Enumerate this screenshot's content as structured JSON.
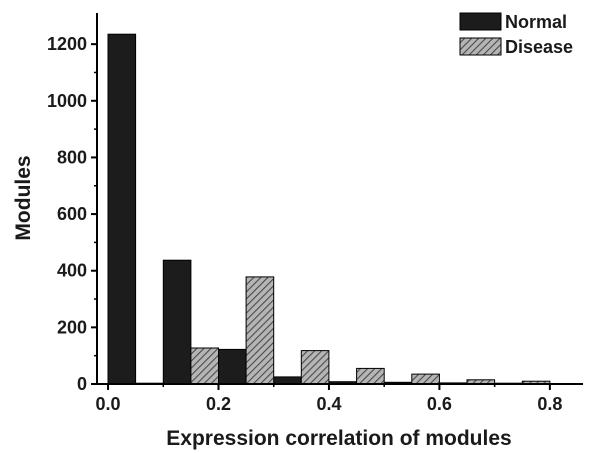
{
  "chart_data": {
    "type": "bar",
    "xlabel": "Expression correlation of modules",
    "ylabel": "Modules",
    "x_bins": [
      0.0,
      0.1,
      0.2,
      0.3,
      0.4,
      0.5,
      0.6,
      0.7
    ],
    "bin_width": 0.1,
    "xlim": [
      -0.02,
      0.86
    ],
    "ylim": [
      0,
      1310
    ],
    "x_ticks": [
      0.0,
      0.2,
      0.4,
      0.6,
      0.8
    ],
    "x_tick_labels": [
      "0.0",
      "0.2",
      "0.4",
      "0.6",
      "0.8"
    ],
    "y_ticks": [
      0,
      200,
      400,
      600,
      800,
      1000,
      1200
    ],
    "y_tick_labels": [
      "0",
      "200",
      "400",
      "600",
      "800",
      "1000",
      "1200"
    ],
    "series": [
      {
        "name": "Normal",
        "color": "#1c1c1c",
        "pattern": "solid",
        "values": [
          1235,
          437,
          122,
          25,
          8,
          6,
          4,
          3
        ]
      },
      {
        "name": "Disease",
        "color": "#8c8c8c",
        "pattern": "hatched",
        "values": [
          3,
          127,
          378,
          118,
          55,
          35,
          15,
          10
        ]
      }
    ],
    "legend_position": "top-right",
    "grid": false
  }
}
